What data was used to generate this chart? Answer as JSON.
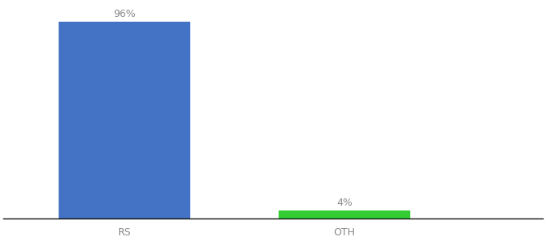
{
  "categories": [
    "RS",
    "OTH"
  ],
  "values": [
    96,
    4
  ],
  "bar_colors": [
    "#4472c4",
    "#33cc33"
  ],
  "labels": [
    "96%",
    "4%"
  ],
  "ylim": [
    0,
    105
  ],
  "bar_width": 0.6,
  "background_color": "#ffffff",
  "label_fontsize": 9,
  "tick_fontsize": 9,
  "label_color": "#888888",
  "tick_color": "#888888"
}
